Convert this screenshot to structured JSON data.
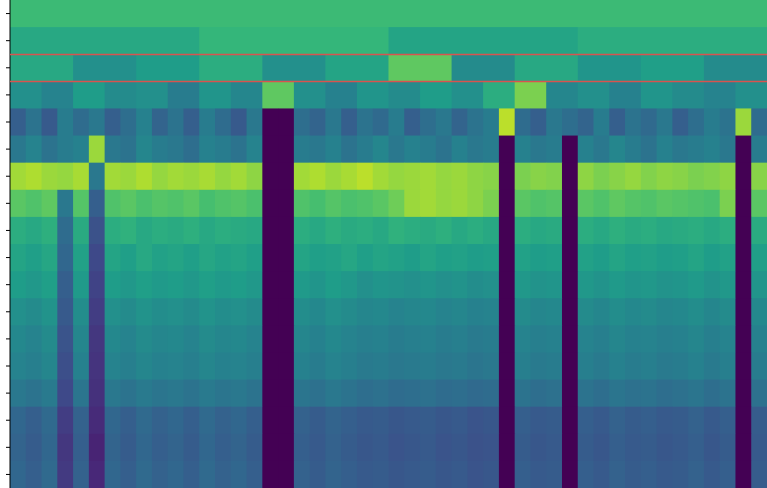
{
  "chart_data": {
    "type": "heatmap",
    "colormap": "viridis",
    "rows": [
      [
        0.68
      ],
      [
        0.6,
        0.66,
        0.58,
        0.62
      ],
      [
        0.6,
        0.5,
        0.55,
        0.62,
        0.5,
        0.58,
        0.75,
        0.48,
        0.6,
        0.52,
        0.56,
        0.48
      ],
      [
        0.5,
        0.45,
        0.55,
        0.48,
        0.5,
        0.42,
        0.52,
        0.46,
        0.75,
        0.5,
        0.44,
        0.52,
        0.48,
        0.55,
        0.5,
        0.62,
        0.8,
        0.46,
        0.5,
        0.44,
        0.52,
        0.48,
        0.45,
        0.5
      ],
      [
        0.3,
        0.38,
        0.28,
        0.42,
        0.35,
        0.4,
        0.3,
        0.36,
        0.44,
        0.32,
        0.38,
        0.3,
        0.42,
        0.35,
        0.28,
        0.4,
        0,
        0,
        0.36,
        0.32,
        0.4,
        0.3,
        0.38,
        0.34,
        0.42,
        0.3,
        0.36,
        0.4,
        0.32,
        0.38,
        0.42,
        0.9,
        0.35,
        0.3,
        0.4,
        0.36,
        0.32,
        0.42,
        0.3,
        0.38,
        0.34,
        0.4,
        0.3,
        0.36,
        0.42,
        0.38,
        0.85,
        0.35
      ],
      [
        0.4,
        0.45,
        0.38,
        0.42,
        0.44,
        0.85,
        0.4,
        0.38,
        0.46,
        0.42,
        0.4,
        0.36,
        0.44,
        0.42,
        0.38,
        0.45,
        0,
        0,
        0.42,
        0.4,
        0.44,
        0.38,
        0.42,
        0.46,
        0.4,
        0.44,
        0.42,
        0.38,
        0.44,
        0.4,
        0.42,
        0,
        0.44,
        0.4,
        0.42,
        0,
        0.44,
        0.4,
        0.46,
        0.42,
        0.38,
        0.44,
        0.4,
        0.42,
        0.44,
        0.4,
        0,
        0.42
      ],
      [
        0.86,
        0.88,
        0.85,
        0.84,
        0.87,
        0.4,
        0.86,
        0.85,
        0.88,
        0.84,
        0.86,
        0.85,
        0.87,
        0.84,
        0.86,
        0.83,
        0,
        0,
        0.86,
        0.88,
        0.85,
        0.87,
        0.9,
        0.86,
        0.84,
        0.85,
        0.86,
        0.84,
        0.85,
        0.83,
        0.82,
        0,
        0.8,
        0.82,
        0.81,
        0,
        0.83,
        0.8,
        0.82,
        0.84,
        0.81,
        0.83,
        0.82,
        0.8,
        0.81,
        0.83,
        0,
        0.82
      ],
      [
        0.74,
        0.72,
        0.75,
        0.4,
        0.73,
        0.3,
        0.72,
        0.74,
        0.71,
        0.73,
        0.72,
        0.74,
        0.7,
        0.72,
        0.73,
        0.71,
        0,
        0,
        0.72,
        0.7,
        0.73,
        0.71,
        0.72,
        0.74,
        0.78,
        0.85,
        0.86,
        0.84,
        0.85,
        0.83,
        0.8,
        0,
        0.74,
        0.72,
        0.73,
        0,
        0.74,
        0.72,
        0.75,
        0.73,
        0.72,
        0.74,
        0.73,
        0.72,
        0.71,
        0.8,
        0,
        0.74
      ],
      [
        0.62,
        0.6,
        0.63,
        0.35,
        0.61,
        0.25,
        0.62,
        0.64,
        0.6,
        0.62,
        0.61,
        0.63,
        0.6,
        0.62,
        0.61,
        0.6,
        0,
        0,
        0.62,
        0.6,
        0.63,
        0.61,
        0.62,
        0.6,
        0.64,
        0.62,
        0.61,
        0.63,
        0.6,
        0.62,
        0.6,
        0,
        0.62,
        0.6,
        0.61,
        0,
        0.62,
        0.6,
        0.63,
        0.61,
        0.62,
        0.6,
        0.61,
        0.62,
        0.6,
        0.62,
        0,
        0.61
      ],
      [
        0.58,
        0.56,
        0.59,
        0.33,
        0.57,
        0.22,
        0.58,
        0.56,
        0.6,
        0.57,
        0.58,
        0.56,
        0.59,
        0.57,
        0.58,
        0.56,
        0,
        0,
        0.58,
        0.56,
        0.57,
        0.59,
        0.56,
        0.58,
        0.57,
        0.55,
        0.58,
        0.56,
        0.57,
        0.55,
        0.56,
        0,
        0.57,
        0.55,
        0.56,
        0,
        0.57,
        0.55,
        0.58,
        0.56,
        0.57,
        0.55,
        0.56,
        0.58,
        0.55,
        0.57,
        0,
        0.56
      ],
      [
        0.55,
        0.53,
        0.56,
        0.3,
        0.54,
        0.2,
        0.55,
        0.53,
        0.56,
        0.54,
        0.55,
        0.53,
        0.56,
        0.54,
        0.55,
        0.53,
        0,
        0,
        0.54,
        0.52,
        0.55,
        0.53,
        0.5,
        0.52,
        0.51,
        0.5,
        0.52,
        0.5,
        0.51,
        0.49,
        0.5,
        0,
        0.53,
        0.51,
        0.52,
        0,
        0.53,
        0.51,
        0.54,
        0.52,
        0.53,
        0.51,
        0.52,
        0.54,
        0.51,
        0.53,
        0,
        0.52
      ],
      [
        0.5,
        0.48,
        0.51,
        0.28,
        0.49,
        0.18,
        0.5,
        0.48,
        0.51,
        0.49,
        0.5,
        0.48,
        0.51,
        0.49,
        0.5,
        0.48,
        0,
        0,
        0.49,
        0.47,
        0.5,
        0.48,
        0.46,
        0.47,
        0.45,
        0.46,
        0.47,
        0.45,
        0.46,
        0.44,
        0.45,
        0,
        0.48,
        0.46,
        0.47,
        0,
        0.48,
        0.46,
        0.49,
        0.47,
        0.48,
        0.46,
        0.47,
        0.49,
        0.46,
        0.48,
        0,
        0.47
      ],
      [
        0.47,
        0.45,
        0.48,
        0.26,
        0.46,
        0.16,
        0.47,
        0.45,
        0.48,
        0.46,
        0.47,
        0.45,
        0.48,
        0.46,
        0.47,
        0.45,
        0,
        0,
        0.46,
        0.44,
        0.47,
        0.45,
        0.43,
        0.44,
        0.42,
        0.43,
        0.44,
        0.42,
        0.43,
        0.41,
        0.42,
        0,
        0.45,
        0.43,
        0.44,
        0,
        0.45,
        0.43,
        0.46,
        0.44,
        0.45,
        0.43,
        0.44,
        0.46,
        0.43,
        0.45,
        0,
        0.44
      ],
      [
        0.45,
        0.43,
        0.46,
        0.24,
        0.44,
        0.15,
        0.45,
        0.43,
        0.46,
        0.44,
        0.45,
        0.43,
        0.46,
        0.44,
        0.45,
        0.43,
        0,
        0,
        0.44,
        0.42,
        0.45,
        0.43,
        0.41,
        0.42,
        0.4,
        0.41,
        0.42,
        0.4,
        0.41,
        0.39,
        0.4,
        0,
        0.43,
        0.41,
        0.42,
        0,
        0.43,
        0.41,
        0.44,
        0.42,
        0.43,
        0.41,
        0.42,
        0.44,
        0.41,
        0.43,
        0,
        0.42
      ],
      [
        0.4,
        0.38,
        0.41,
        0.22,
        0.39,
        0.14,
        0.4,
        0.38,
        0.41,
        0.39,
        0.4,
        0.38,
        0.41,
        0.39,
        0.4,
        0.38,
        0,
        0,
        0.39,
        0.37,
        0.4,
        0.38,
        0.36,
        0.37,
        0.35,
        0.36,
        0.37,
        0.35,
        0.36,
        0.34,
        0.35,
        0,
        0.38,
        0.36,
        0.37,
        0,
        0.38,
        0.36,
        0.39,
        0.37,
        0.38,
        0.36,
        0.37,
        0.39,
        0.36,
        0.38,
        0,
        0.37
      ],
      [
        0.33,
        0.3,
        0.34,
        0.18,
        0.31,
        0.12,
        0.33,
        0.3,
        0.34,
        0.31,
        0.33,
        0.3,
        0.34,
        0.31,
        0.33,
        0.3,
        0,
        0,
        0.31,
        0.29,
        0.32,
        0.3,
        0.28,
        0.29,
        0.27,
        0.28,
        0.29,
        0.27,
        0.28,
        0.26,
        0.27,
        0,
        0.3,
        0.28,
        0.29,
        0,
        0.3,
        0.28,
        0.31,
        0.29,
        0.3,
        0.28,
        0.29,
        0.31,
        0.28,
        0.3,
        0,
        0.29
      ],
      [
        0.32,
        0.29,
        0.33,
        0.16,
        0.3,
        0.1,
        0.32,
        0.29,
        0.33,
        0.3,
        0.32,
        0.29,
        0.33,
        0.3,
        0.32,
        0.29,
        0,
        0,
        0.3,
        0.28,
        0.31,
        0.29,
        0.27,
        0.28,
        0.26,
        0.27,
        0.28,
        0.26,
        0.27,
        0.25,
        0.26,
        0,
        0.29,
        0.27,
        0.28,
        0,
        0.29,
        0.27,
        0.3,
        0.28,
        0.29,
        0.27,
        0.28,
        0.3,
        0.27,
        0.29,
        0,
        0.28
      ],
      [
        0.33,
        0.3,
        0.34,
        0.17,
        0.31,
        0.11,
        0.33,
        0.3,
        0.34,
        0.31,
        0.33,
        0.3,
        0.34,
        0.31,
        0.33,
        0.3,
        0,
        0,
        0.31,
        0.29,
        0.32,
        0.3,
        0.28,
        0.29,
        0.27,
        0.28,
        0.29,
        0.27,
        0.28,
        0.26,
        0.27,
        0,
        0.3,
        0.28,
        0.29,
        0,
        0.3,
        0.28,
        0.31,
        0.29,
        0.3,
        0.28,
        0.29,
        0.31,
        0.28,
        0.3,
        0,
        0.29
      ]
    ]
  }
}
